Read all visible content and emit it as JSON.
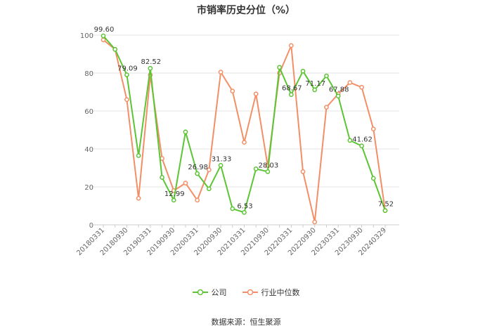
{
  "source_text": "数据来源：恒生聚源",
  "chart_data": {
    "type": "line",
    "title": "市销率历史分位（%）",
    "xlabel": "",
    "ylabel": "",
    "ylim": [
      0,
      100
    ],
    "yticks": [
      0,
      20,
      40,
      60,
      80,
      100
    ],
    "grid": true,
    "legend_position": "bottom",
    "x": [
      "20180331",
      "20180630",
      "20180930",
      "20181231",
      "20190331",
      "20190630",
      "20190930",
      "20191231",
      "20200331",
      "20200630",
      "20200930",
      "20201231",
      "20210331",
      "20210630",
      "20210930",
      "20211231",
      "20220331",
      "20220630",
      "20220930",
      "20221231",
      "20230331",
      "20230630",
      "20230930",
      "20231231",
      "20240329"
    ],
    "x_tick_labels": [
      "20180331",
      "20180930",
      "20190331",
      "20190930",
      "20200331",
      "20200930",
      "20210331",
      "20210930",
      "20220331",
      "20220930",
      "20230331",
      "20230930",
      "20240329"
    ],
    "series": [
      {
        "name": "公司",
        "color": "#5cc534",
        "values": [
          99.6,
          92.5,
          79.09,
          36.5,
          82.52,
          25.0,
          12.99,
          49.0,
          26.98,
          19.0,
          31.33,
          8.5,
          6.53,
          29.5,
          28.03,
          83.0,
          68.67,
          81.0,
          71.17,
          78.5,
          67.88,
          44.5,
          41.62,
          24.5,
          7.52
        ],
        "labels": {
          "0": "99.60",
          "2": "79.09",
          "4": "82.52",
          "6": "12.99",
          "8": "26.98",
          "10": "31.33",
          "12": "6.53",
          "14": "28.03",
          "16": "68.67",
          "18": "71.17",
          "20": "67.88",
          "22": "41.62",
          "24": "7.52"
        }
      },
      {
        "name": "行业中位数",
        "color": "#f38f66",
        "values": [
          97.5,
          92.5,
          66.0,
          14.0,
          79.0,
          35.0,
          18.0,
          22.0,
          13.0,
          29.0,
          80.5,
          70.5,
          43.5,
          69.0,
          31.0,
          80.0,
          94.5,
          28.0,
          1.5,
          62.0,
          69.0,
          75.0,
          72.5,
          50.5,
          7.5
        ]
      }
    ]
  }
}
